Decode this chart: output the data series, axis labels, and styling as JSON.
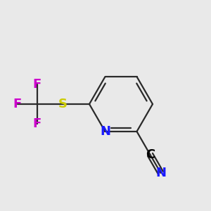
{
  "background_color": "#e9e9e9",
  "atom_colors": {
    "C": "#000000",
    "N_ring": "#1a1aff",
    "N_cn": "#1a1aff",
    "S": "#cccc00",
    "F": "#cc00cc"
  },
  "bond_color": "#2a2a2a",
  "line_width": 1.6,
  "font_size": 13
}
